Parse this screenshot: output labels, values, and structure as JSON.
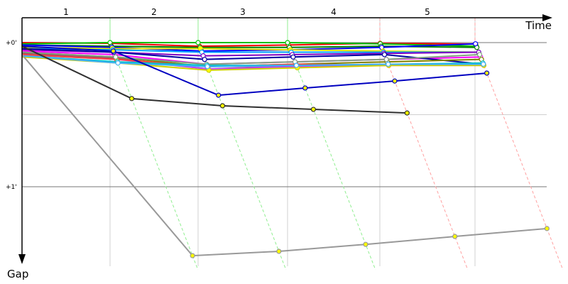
{
  "chart_data": {
    "type": "line",
    "xlabel": "Time",
    "ylabel": "Gap",
    "x_unit": "lap",
    "y_unit": "seconds",
    "lap_labels": [
      "1",
      "2",
      "3",
      "4",
      "5"
    ],
    "y_ticks": [
      {
        "value": 0,
        "label": "+0'"
      },
      {
        "value": 60,
        "label": "+1'"
      }
    ],
    "ylim": [
      0,
      95
    ],
    "grid": true,
    "lap_marker_colors": {
      "early": "#90ee90",
      "late": "#ffa0a0"
    },
    "series": [
      {
        "color": "#ff0000",
        "marker": "#ffffff",
        "gaps": [
          0,
          0.3,
          1.5,
          1.0,
          0.3,
          0.6
        ]
      },
      {
        "color": "#00c000",
        "marker": "#ffffff",
        "gaps": [
          0.5,
          0,
          0,
          0,
          0.5,
          1.5
        ]
      },
      {
        "color": "#008000",
        "marker": "#ffffff",
        "gaps": [
          1,
          1.5,
          2,
          2,
          1.5,
          2
        ]
      },
      {
        "color": "#0000ff",
        "marker": "#ffffff",
        "gaps": [
          1,
          2,
          3.5,
          3,
          2,
          0.5
        ]
      },
      {
        "color": "#e0e000",
        "marker": "#ffff00",
        "gaps": [
          2,
          2.5,
          2.5,
          3,
          3.5,
          4
        ]
      },
      {
        "color": "#00a0ff",
        "marker": "#ffffff",
        "gaps": [
          2.5,
          3,
          4,
          4,
          4,
          4
        ]
      },
      {
        "color": "#8000c0",
        "marker": "#ffffff",
        "gaps": [
          3,
          4,
          5.5,
          5,
          4.5,
          4
        ]
      },
      {
        "color": "#ff00ff",
        "marker": "#ffffff",
        "gaps": [
          3.5,
          5,
          9,
          8,
          7,
          6
        ]
      },
      {
        "color": "#0000a0",
        "marker": "#ffffff",
        "gaps": [
          2.5,
          4,
          7,
          6,
          5,
          9
        ]
      },
      {
        "color": "#808000",
        "marker": "#ffffff",
        "gaps": [
          4,
          6,
          10,
          9,
          8,
          7
        ]
      },
      {
        "color": "#a05050",
        "marker": "#ffff00",
        "gaps": [
          4.5,
          6.5,
          11,
          9.5,
          9,
          9
        ]
      },
      {
        "color": "#c040ff",
        "marker": "#ffff00",
        "gaps": [
          5,
          7,
          11,
          10,
          9.5,
          9
        ]
      },
      {
        "color": "#ff4040",
        "marker": "#ffff00",
        "gaps": [
          5,
          7,
          10,
          9,
          9.5,
          9.5
        ]
      },
      {
        "color": "#80a080",
        "marker": "#ffffff",
        "gaps": [
          4,
          6,
          9,
          8,
          7,
          5
        ]
      },
      {
        "color": "#00c0c0",
        "marker": "#ffffff",
        "gaps": [
          5.5,
          8,
          9.5,
          9.5,
          9,
          8.5
        ]
      },
      {
        "color": "#d0d000",
        "marker": "#ffff00",
        "gaps": [
          6,
          8.5,
          11.5,
          10.5,
          9.5,
          9.5
        ]
      },
      {
        "color": "#40b0ff",
        "marker": "#ffffff",
        "gaps": [
          5.5,
          8.5,
          10,
          9.5,
          9,
          9
        ]
      },
      {
        "color": "#0000c0",
        "marker": "#ffff00",
        "gaps": [
          1.5,
          3.5,
          21.9,
          18.9,
          16.0,
          12.7
        ]
      },
      {
        "color": "#303030",
        "marker": "#ffff00",
        "gaps": [
          1.5,
          23.3,
          26.3,
          27.8,
          29.3
        ]
      },
      {
        "color": "#999999",
        "marker": "#ffff00",
        "gaps": [
          5,
          88.7,
          86.9,
          84.0,
          80.7,
          77.4
        ]
      }
    ]
  }
}
